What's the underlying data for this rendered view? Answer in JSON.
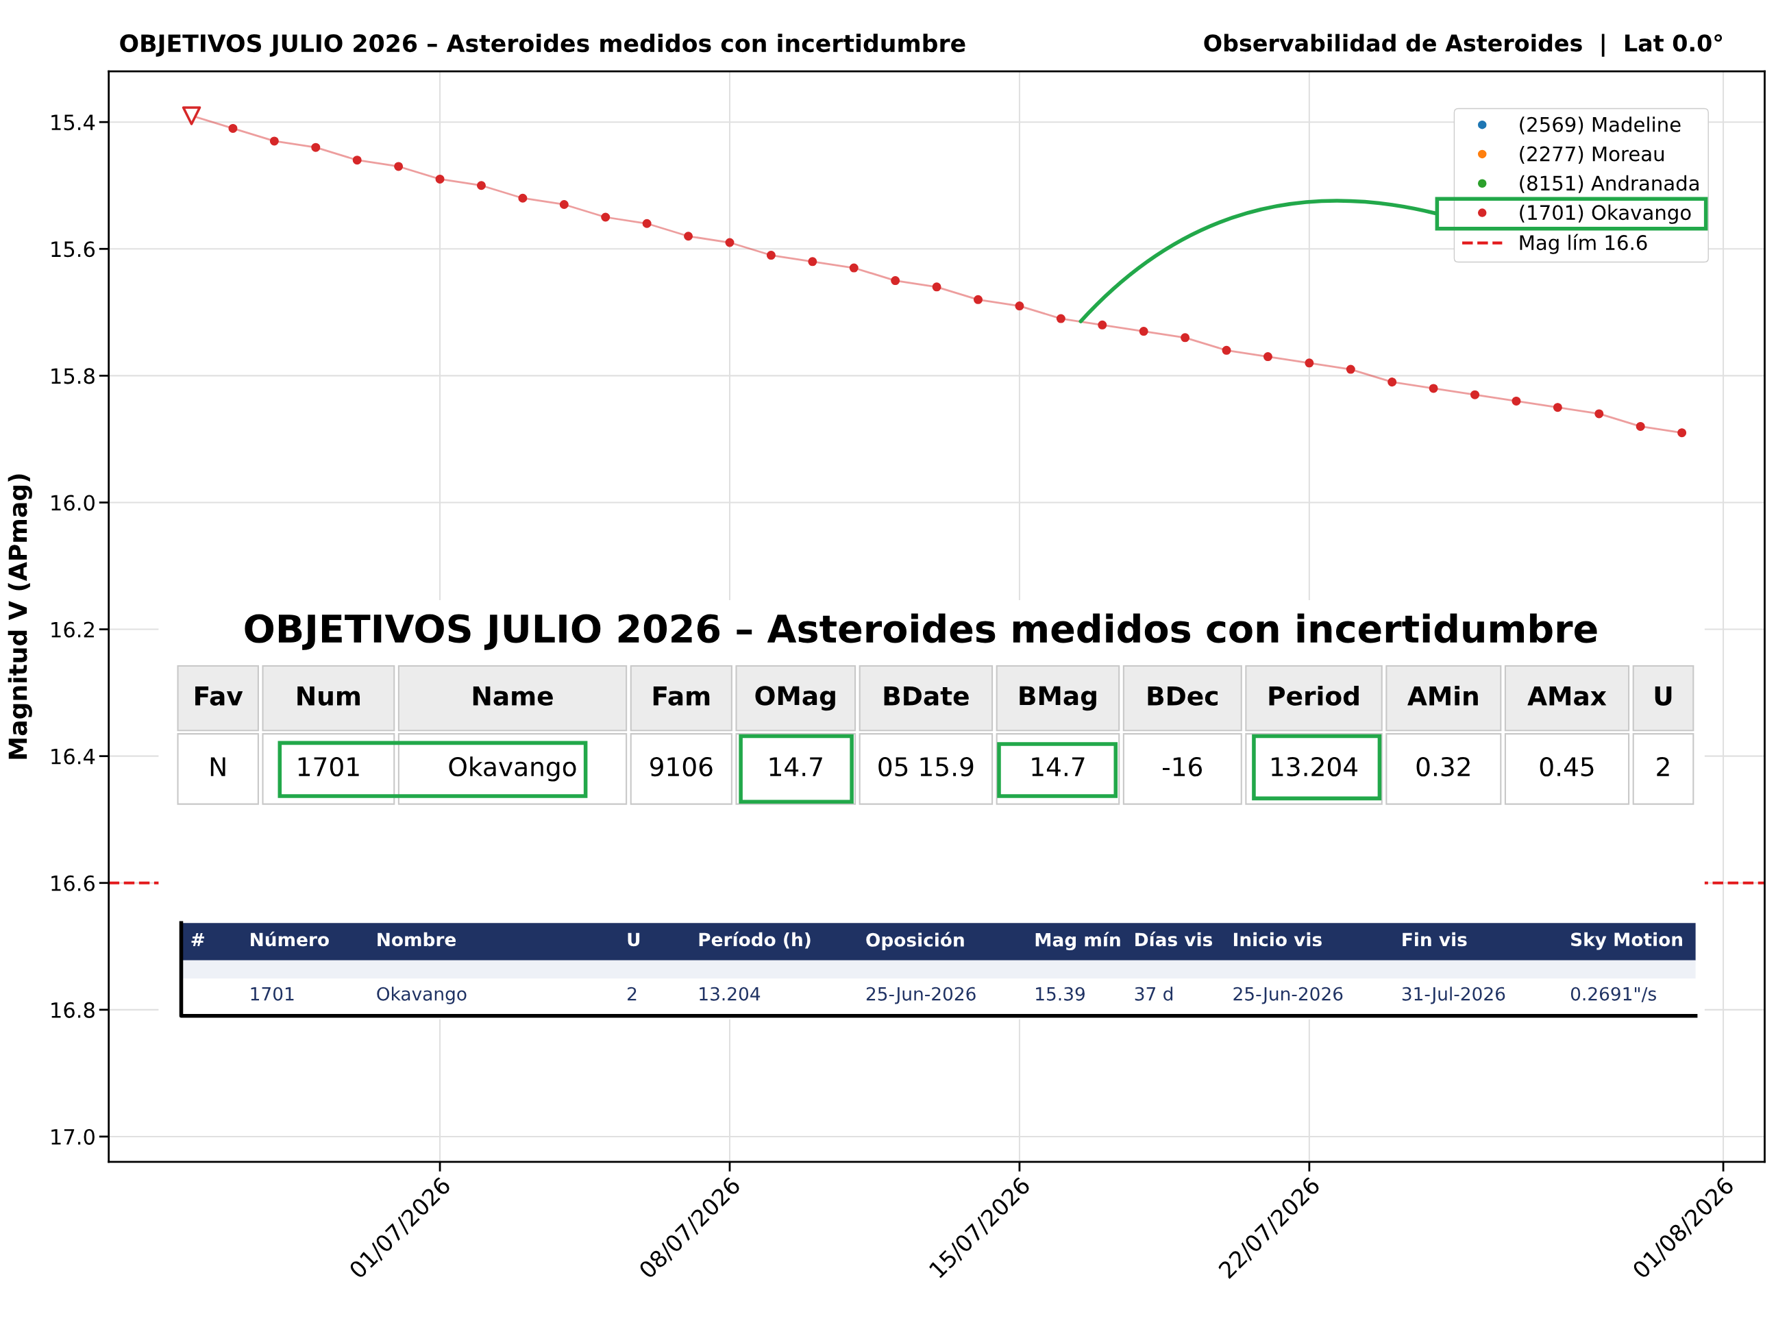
{
  "chart_data": {
    "type": "line",
    "title": "OBJETIVOS JULIO 2026 – Asteroides medidos con incertidumbre",
    "subtitle": "Observabilidad de Asteroides  |  Lat 0.0°",
    "ylabel": "Magnitud V (APmag)",
    "x": [
      "2026-06-25",
      "2026-06-26",
      "2026-06-27",
      "2026-06-28",
      "2026-06-29",
      "2026-06-30",
      "2026-07-01",
      "2026-07-02",
      "2026-07-03",
      "2026-07-04",
      "2026-07-05",
      "2026-07-06",
      "2026-07-07",
      "2026-07-08",
      "2026-07-09",
      "2026-07-10",
      "2026-07-11",
      "2026-07-12",
      "2026-07-13",
      "2026-07-14",
      "2026-07-15",
      "2026-07-16",
      "2026-07-17",
      "2026-07-18",
      "2026-07-19",
      "2026-07-20",
      "2026-07-21",
      "2026-07-22",
      "2026-07-23",
      "2026-07-24",
      "2026-07-25",
      "2026-07-26",
      "2026-07-27",
      "2026-07-28",
      "2026-07-29",
      "2026-07-30",
      "2026-07-31"
    ],
    "series": [
      {
        "name": "(2569) Madeline",
        "type": "scatter",
        "color": "#1f77b4",
        "values": [
          null,
          null,
          null,
          null,
          null,
          null,
          null,
          null,
          null,
          null,
          null,
          null,
          null,
          null,
          null,
          null,
          null,
          null,
          null,
          null,
          null,
          null,
          null,
          null,
          null,
          null,
          null,
          null,
          null,
          null,
          null,
          null,
          null,
          null,
          null,
          null,
          null
        ]
      },
      {
        "name": "(2277) Moreau",
        "type": "scatter",
        "color": "#ff7f0e",
        "values": [
          null,
          null,
          null,
          null,
          null,
          null,
          null,
          null,
          null,
          null,
          null,
          null,
          null,
          null,
          null,
          null,
          null,
          null,
          null,
          null,
          null,
          null,
          null,
          null,
          null,
          null,
          null,
          null,
          null,
          null,
          null,
          null,
          null,
          null,
          null,
          null,
          null
        ]
      },
      {
        "name": "(8151) Andranada",
        "type": "scatter",
        "color": "#2ca02c",
        "values": [
          null,
          null,
          null,
          null,
          null,
          null,
          null,
          null,
          null,
          null,
          null,
          null,
          null,
          null,
          null,
          null,
          null,
          null,
          null,
          null,
          null,
          null,
          null,
          null,
          null,
          null,
          null,
          null,
          null,
          null,
          null,
          null,
          null,
          null,
          null,
          null,
          null
        ]
      },
      {
        "name": "(1701) Okavango",
        "marker": "circle",
        "color": "#d62728",
        "values": [
          15.39,
          15.41,
          15.43,
          15.44,
          15.46,
          15.47,
          15.49,
          15.5,
          15.52,
          15.53,
          15.55,
          15.56,
          15.58,
          15.59,
          15.61,
          15.62,
          15.63,
          15.65,
          15.66,
          15.68,
          15.69,
          15.71,
          15.72,
          15.73,
          15.74,
          15.76,
          15.77,
          15.78,
          15.79,
          15.81,
          15.82,
          15.83,
          15.84,
          15.85,
          15.86,
          15.88,
          15.89
        ]
      },
      {
        "type": "scatter",
        "marker": "triangle",
        "color": "#d62728",
        "x": [
          "2026-06-25"
        ],
        "values": [
          15.39
        ]
      }
    ],
    "ref_lines": [
      {
        "axis": "y",
        "value": 16.6,
        "label": "Mag lím 16.6",
        "color": "#e31a1c",
        "line_style": "dashed"
      }
    ],
    "xlim": [
      "2026-06-23",
      "2026-08-02"
    ],
    "xticks": [
      {
        "value": "2026-07-01",
        "label": "01/07/2026"
      },
      {
        "value": "2026-07-08",
        "label": "08/07/2026"
      },
      {
        "value": "2026-07-15",
        "label": "15/07/2026"
      },
      {
        "value": "2026-07-22",
        "label": "22/07/2026"
      },
      {
        "value": "2026-08-01",
        "label": "01/08/2026"
      }
    ],
    "ylim": [
      17.04,
      15.32
    ],
    "yticks": [
      15.4,
      15.6,
      15.8,
      {
        "value": 16,
        "label": "16.0"
      },
      16.2,
      16.4,
      16.6,
      16.8,
      {
        "value": 17,
        "label": "17.0"
      }
    ],
    "grid": true,
    "legend": "top right",
    "annotations": [
      "OBJETIVOS JULIO 2026 – Asteroides medidos con incertidumbre",
      "Fav",
      "Num",
      "Name",
      "Fam",
      "OMag",
      "BDate",
      "BMag",
      "BDec",
      "Period",
      "AMin",
      "AMax",
      "U",
      "N",
      "1701",
      "Okavango",
      "9106",
      "14.7",
      "05 15.9",
      "14.7",
      "-16",
      "13.204",
      "0.32",
      "0.45",
      "2",
      "#",
      "Número",
      "Nombre",
      "U",
      "Período (h)",
      "Oposición",
      "Mag mín",
      "Días vis",
      "Inicio vis",
      "Fin vis",
      "Sky Motion",
      "1701",
      "Okavango",
      "2",
      "13.204",
      "25-Jun-2026",
      "15.39",
      "37 d",
      "25-Jun-2026",
      "31-Jul-2026",
      "0.2691\"/s"
    ]
  }
}
